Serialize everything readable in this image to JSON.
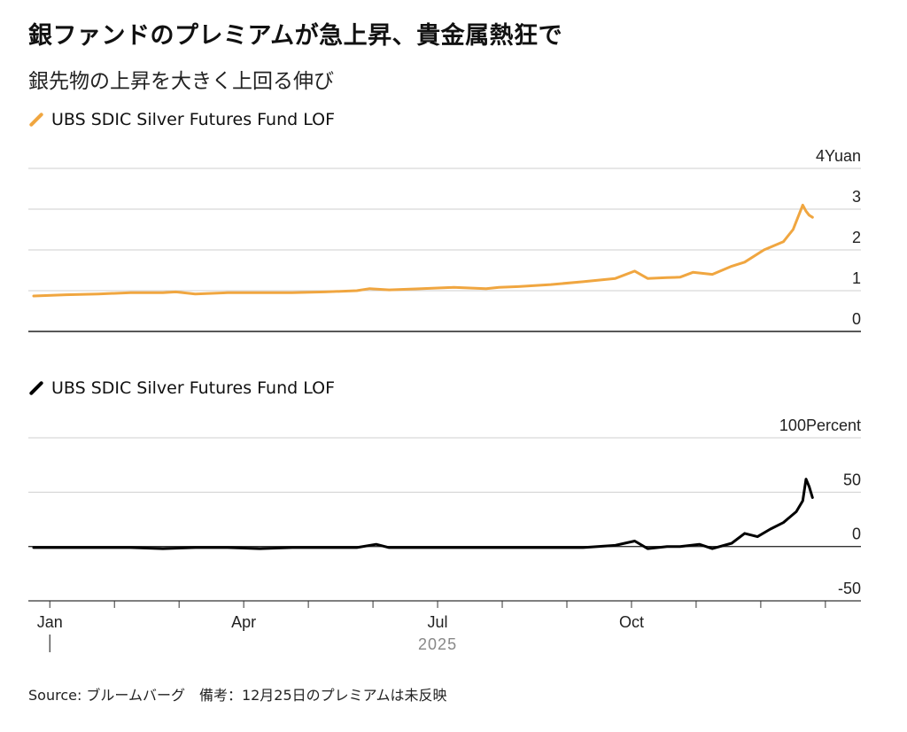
{
  "title": "銀ファンドのプレミアムが急上昇、貴金属熱狂で",
  "subtitle": "銀先物の上昇を大きく上回る伸び",
  "source": "Source: ブルームバーグ　備考：12月25日のプレミアムは未反映",
  "colors": {
    "price": "#f0a640",
    "premium": "#000000",
    "grid": "#cfcfcf",
    "baseline": "#333333"
  },
  "x_axis": {
    "months": [
      "Jan",
      "Apr",
      "Jul",
      "Oct"
    ],
    "year": "2025"
  },
  "chart_data": [
    {
      "type": "line",
      "legend": "UBS SDIC Silver Futures Fund LOF",
      "unit": "Yuan",
      "yticks": [
        0,
        1,
        2,
        3,
        4
      ],
      "ytick_labels": [
        "0",
        "1",
        "2",
        "3",
        "4Yuan"
      ],
      "ylim": [
        0,
        4
      ],
      "x_months": [
        1,
        1.5,
        2,
        2.5,
        3,
        3.2,
        3.5,
        4,
        4.5,
        5,
        5.5,
        6,
        6.2,
        6.5,
        7,
        7.5,
        8,
        8.2,
        8.5,
        9,
        9.5,
        10,
        10.3,
        10.5,
        10.8,
        11,
        11.2,
        11.5,
        11.8,
        12,
        12.3,
        12.6,
        12.75,
        12.85,
        12.9,
        12.95,
        13.0,
        13.05
      ],
      "values": [
        0.87,
        0.9,
        0.92,
        0.95,
        0.95,
        0.97,
        0.92,
        0.95,
        0.95,
        0.95,
        0.97,
        1.0,
        1.05,
        1.02,
        1.05,
        1.08,
        1.05,
        1.08,
        1.1,
        1.15,
        1.22,
        1.3,
        1.48,
        1.3,
        1.32,
        1.33,
        1.45,
        1.4,
        1.6,
        1.7,
        2.0,
        2.2,
        2.5,
        2.9,
        3.1,
        2.95,
        2.85,
        2.8
      ]
    },
    {
      "type": "line",
      "legend": "UBS SDIC Silver Futures Fund LOF",
      "unit": "Percent",
      "yticks": [
        -50,
        0,
        50,
        100
      ],
      "ytick_labels": [
        "-50",
        "0",
        "50",
        "100Percent"
      ],
      "ylim": [
        -50,
        100
      ],
      "x_months": [
        1,
        1.5,
        2,
        2.5,
        3,
        3.5,
        4,
        4.5,
        5,
        5.5,
        6,
        6.3,
        6.5,
        7,
        7.5,
        8,
        8.5,
        9,
        9.5,
        10,
        10.3,
        10.5,
        10.8,
        11,
        11.3,
        11.5,
        11.8,
        12,
        12.2,
        12.4,
        12.6,
        12.8,
        12.9,
        12.95,
        13.0,
        13.05
      ],
      "values": [
        -1,
        -1,
        -1,
        -1,
        -2,
        -1,
        -1,
        -2,
        -1,
        -1,
        -1,
        2,
        -1,
        -1,
        -1,
        -1,
        -1,
        -1,
        -1,
        1,
        5,
        -2,
        0,
        0,
        2,
        -2,
        3,
        12,
        9,
        16,
        22,
        32,
        42,
        62,
        55,
        45
      ]
    }
  ]
}
